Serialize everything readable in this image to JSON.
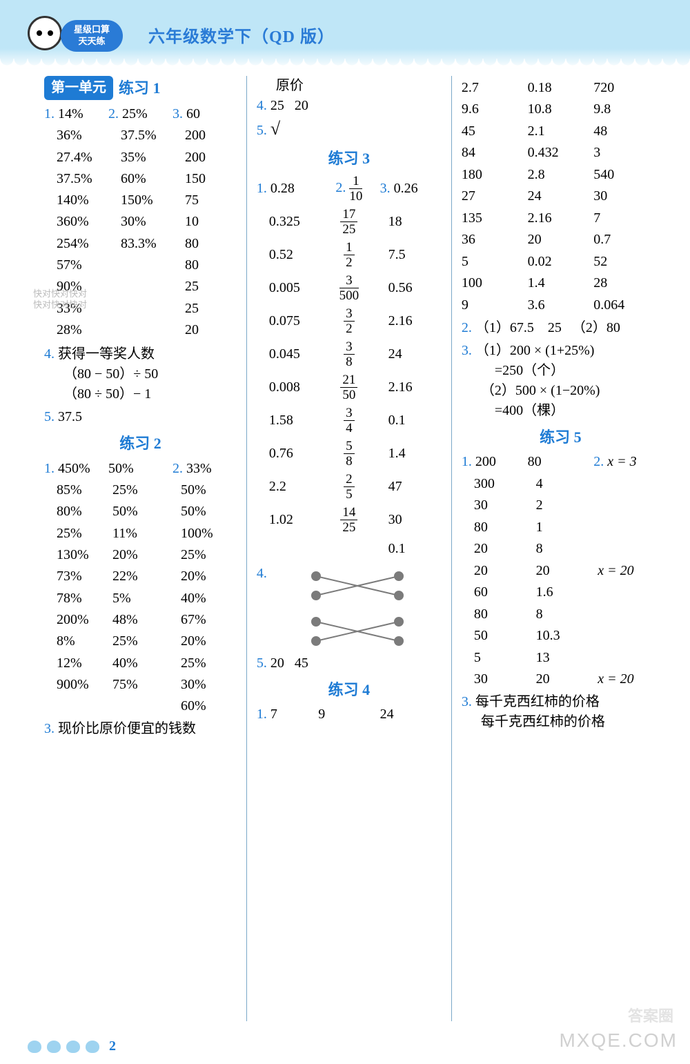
{
  "header": {
    "badge_line1": "星级口算",
    "badge_line2": "天天练",
    "title": "六年级数学下（QD 版）"
  },
  "watermarks": {
    "ghost": "快对快对快对\n快对快对快对",
    "corner": "MXQE.COM",
    "circle": "答案圈"
  },
  "page_number": "2",
  "unit_label": "第一单元",
  "col1": {
    "ex1": {
      "title": "练习 1",
      "q1": "1.",
      "q2": "2.",
      "q3": "3.",
      "rows": [
        [
          "14%",
          "25%",
          "60"
        ],
        [
          "36%",
          "37.5%",
          "200"
        ],
        [
          "27.4%",
          "35%",
          "200"
        ],
        [
          "37.5%",
          "60%",
          "150"
        ],
        [
          "140%",
          "150%",
          "75"
        ],
        [
          "360%",
          "30%",
          "10"
        ],
        [
          "254%",
          "83.3%",
          "80"
        ],
        [
          "57%",
          "",
          "80"
        ],
        [
          "90%",
          "",
          "25"
        ],
        [
          "33%",
          "",
          "25"
        ],
        [
          "28%",
          "",
          "20"
        ]
      ],
      "q4": "4.",
      "q4_text": "获得一等奖人数",
      "q4_line1": "（80 − 50）÷ 50",
      "q4_line2": "（80 ÷ 50）− 1",
      "q5": "5.",
      "q5_v": "37.5"
    },
    "ex2": {
      "title": "练习 2",
      "q1": "1.",
      "q2": "2.",
      "rows": [
        [
          "450%",
          "50%",
          "33%"
        ],
        [
          "85%",
          "25%",
          "50%"
        ],
        [
          "80%",
          "50%",
          "50%"
        ],
        [
          "25%",
          "11%",
          "100%"
        ],
        [
          "130%",
          "20%",
          "25%"
        ],
        [
          "73%",
          "22%",
          "20%"
        ],
        [
          "78%",
          "5%",
          "40%"
        ],
        [
          "200%",
          "48%",
          "67%"
        ],
        [
          "8%",
          "25%",
          "20%"
        ],
        [
          "12%",
          "40%",
          "25%"
        ],
        [
          "900%",
          "75%",
          "30%"
        ],
        [
          "",
          "",
          "60%"
        ]
      ],
      "q3": "3.",
      "q3_text": "现价比原价便宜的钱数"
    }
  },
  "col2": {
    "top": {
      "line1": "原价",
      "q4": "4.",
      "q4_v1": "25",
      "q4_v2": "20",
      "q5": "5.",
      "q5_v": "√"
    },
    "ex3": {
      "title": "练习 3",
      "q1": "1.",
      "q2": "2.",
      "q3": "3.",
      "rows": [
        {
          "a": "0.28",
          "n": "1",
          "d": "10",
          "c": "0.26"
        },
        {
          "a": "0.325",
          "n": "17",
          "d": "25",
          "c": "18"
        },
        {
          "a": "0.52",
          "n": "1",
          "d": "2",
          "c": "7.5"
        },
        {
          "a": "0.005",
          "n": "3",
          "d": "500",
          "c": "0.56"
        },
        {
          "a": "0.075",
          "n": "3",
          "d": "2",
          "c": "2.16"
        },
        {
          "a": "0.045",
          "n": "3",
          "d": "8",
          "c": "24"
        },
        {
          "a": "0.008",
          "n": "21",
          "d": "50",
          "c": "2.16"
        },
        {
          "a": "1.58",
          "n": "3",
          "d": "4",
          "c": "0.1"
        },
        {
          "a": "0.76",
          "n": "5",
          "d": "8",
          "c": "1.4"
        },
        {
          "a": "2.2",
          "n": "2",
          "d": "5",
          "c": "47"
        },
        {
          "a": "1.02",
          "n": "14",
          "d": "25",
          "c": "30"
        },
        {
          "a": "",
          "n": "",
          "d": "",
          "c": "0.1"
        }
      ],
      "q4": "4.",
      "cross": {
        "dot_color": "#7b7b7b",
        "line_color": "#7b7b7b",
        "width": 160,
        "height": 120
      },
      "q5": "5.",
      "q5_v1": "20",
      "q5_v2": "45"
    },
    "ex4": {
      "title": "练习 4",
      "q1": "1.",
      "r1": [
        "7",
        "9",
        "24"
      ]
    }
  },
  "col3": {
    "top_rows": [
      [
        "2.7",
        "0.18",
        "720"
      ],
      [
        "9.6",
        "10.8",
        "9.8"
      ],
      [
        "45",
        "2.1",
        "48"
      ],
      [
        "84",
        "0.432",
        "3"
      ],
      [
        "180",
        "2.8",
        "540"
      ],
      [
        "27",
        "24",
        "30"
      ],
      [
        "135",
        "2.16",
        "7"
      ],
      [
        "36",
        "20",
        "0.7"
      ],
      [
        "5",
        "0.02",
        "52"
      ],
      [
        "100",
        "1.4",
        "28"
      ],
      [
        "9",
        "3.6",
        "0.064"
      ]
    ],
    "q2": "2.",
    "q2_a": "（1）67.5　25",
    "q2_b": "（2）80",
    "q3": "3.",
    "q3_line1": "（1）200 × (1+25%)",
    "q3_line2": "=250（个）",
    "q3_line3": "（2）500 × (1−20%)",
    "q3_line4": "=400（棵）",
    "ex5": {
      "title": "练习 5",
      "q1": "1.",
      "q2": "2.",
      "q2_eq": "x = 3",
      "rows": [
        [
          "200",
          "80",
          ""
        ],
        [
          "300",
          "4",
          ""
        ],
        [
          "30",
          "2",
          ""
        ],
        [
          "80",
          "1",
          ""
        ],
        [
          "20",
          "8",
          ""
        ],
        [
          "20",
          "20",
          "x = 20"
        ],
        [
          "60",
          "1.6",
          ""
        ],
        [
          "80",
          "8",
          ""
        ],
        [
          "50",
          "10.3",
          ""
        ],
        [
          "5",
          "13",
          ""
        ],
        [
          "30",
          "20",
          "x = 20"
        ]
      ],
      "q3": "3.",
      "q3_line1": "每千克西红柿的价格",
      "q3_line2": "每千克西红柿的价格"
    }
  }
}
